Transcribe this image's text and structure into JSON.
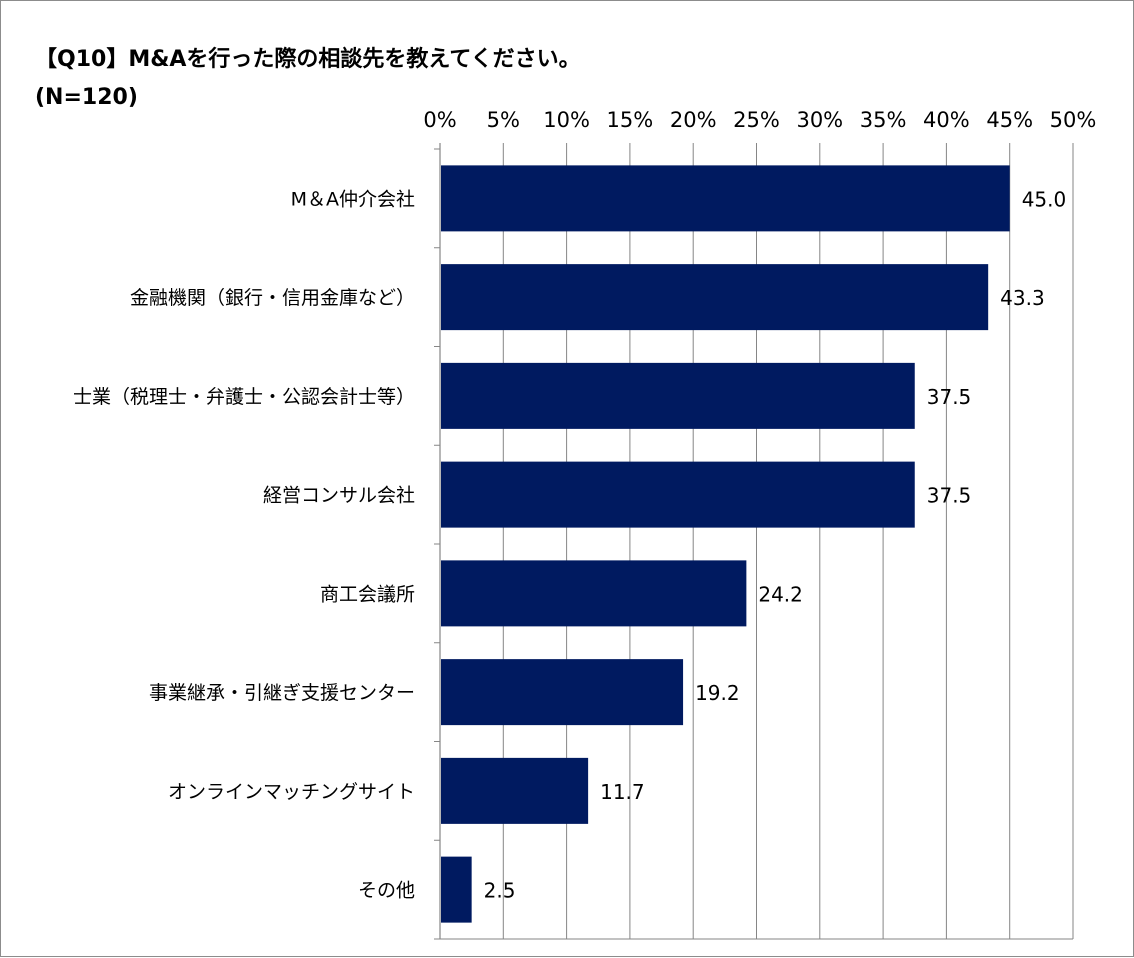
{
  "title": "【Q10】M&Aを行った際の相談先を教えてください。",
  "subtitle": "(N=120)",
  "colors": {
    "bar": "#001a60",
    "grid": "#868686",
    "axis": "#868686"
  },
  "chart_data": {
    "type": "bar",
    "orientation": "horizontal",
    "categories": [
      "M＆A仲介会社",
      "金融機関（銀行・信用金庫など）",
      "士業（税理士・弁護士・公認会計士等）",
      "経営コンサル会社",
      "商工会議所",
      "事業継承・引継ぎ支援センター",
      "オンラインマッチングサイト",
      "その他"
    ],
    "values": [
      45.0,
      43.3,
      37.5,
      37.5,
      24.2,
      19.2,
      11.7,
      2.5
    ],
    "data_labels": [
      "45.0",
      "43.3",
      "37.5",
      "37.5",
      "24.2",
      "19.2",
      "11.7",
      "2.5"
    ],
    "xlim": [
      0,
      50
    ],
    "xticks": [
      0,
      5,
      10,
      15,
      20,
      25,
      30,
      35,
      40,
      45,
      50
    ],
    "xtick_labels": [
      "0%",
      "5%",
      "10%",
      "15%",
      "20%",
      "25%",
      "30%",
      "35%",
      "40%",
      "45%",
      "50%"
    ],
    "xaxis_position": "top",
    "grid": true,
    "legend": "none"
  }
}
